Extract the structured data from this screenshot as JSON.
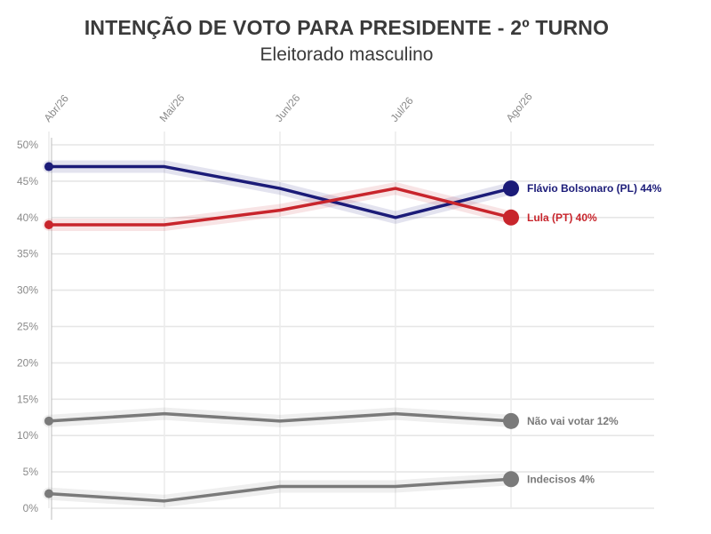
{
  "chart_data": {
    "type": "line",
    "title": "INTENÇÃO DE VOTO PARA PRESIDENTE - 2º TURNO",
    "subtitle": "Eleitorado masculino",
    "categories": [
      "Abr/26",
      "Mai/26",
      "Jun/26",
      "Jul/26",
      "Ago/26"
    ],
    "ylim": [
      0,
      50
    ],
    "yticks": [
      0,
      5,
      10,
      15,
      20,
      25,
      30,
      35,
      40,
      45,
      50
    ],
    "ytick_labels": [
      "0%",
      "5%",
      "10%",
      "15%",
      "20%",
      "25%",
      "30%",
      "35%",
      "40%",
      "45%",
      "50%"
    ],
    "grid": true,
    "legend": "end-of-line labels",
    "series": [
      {
        "name": "Flávio Bolsonaro (PL)",
        "label": "Flávio Bolsonaro (PL) 44%",
        "color": "#1b1b78",
        "values": [
          47,
          47,
          44,
          40,
          44
        ]
      },
      {
        "name": "Lula (PT)",
        "label": "Lula (PT) 40%",
        "color": "#c8252c",
        "values": [
          39,
          39,
          41,
          44,
          40
        ]
      },
      {
        "name": "Não vai votar",
        "label": "Não vai votar 12%",
        "color": "#7a7a7a",
        "values": [
          12,
          13,
          12,
          13,
          12
        ]
      },
      {
        "name": "Indecisos",
        "label": "Indecisos 4%",
        "color": "#7a7a7a",
        "values": [
          2,
          1,
          3,
          3,
          4
        ]
      }
    ]
  }
}
